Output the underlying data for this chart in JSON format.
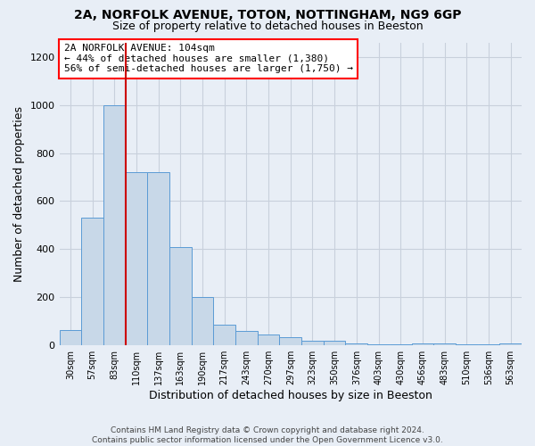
{
  "title1": "2A, NORFOLK AVENUE, TOTON, NOTTINGHAM, NG9 6GP",
  "title2": "Size of property relative to detached houses in Beeston",
  "xlabel": "Distribution of detached houses by size in Beeston",
  "ylabel": "Number of detached properties",
  "categories": [
    "30sqm",
    "57sqm",
    "83sqm",
    "110sqm",
    "137sqm",
    "163sqm",
    "190sqm",
    "217sqm",
    "243sqm",
    "270sqm",
    "297sqm",
    "323sqm",
    "350sqm",
    "376sqm",
    "403sqm",
    "430sqm",
    "456sqm",
    "483sqm",
    "510sqm",
    "536sqm",
    "563sqm"
  ],
  "values": [
    65,
    530,
    1000,
    720,
    720,
    410,
    200,
    85,
    60,
    45,
    35,
    20,
    20,
    10,
    5,
    5,
    10,
    10,
    5,
    5,
    10
  ],
  "bar_color": "#c8d8e8",
  "bar_edge_color": "#5b9bd5",
  "grid_color": "#c8d0dc",
  "bg_color": "#e8eef6",
  "annotation_box_text": "2A NORFOLK AVENUE: 104sqm\n← 44% of detached houses are smaller (1,380)\n56% of semi-detached houses are larger (1,750) →",
  "red_line_color": "#cc0000",
  "red_line_x": 2.5,
  "ylim": [
    0,
    1260
  ],
  "yticks": [
    0,
    200,
    400,
    600,
    800,
    1000,
    1200
  ],
  "footer": "Contains HM Land Registry data © Crown copyright and database right 2024.\nContains public sector information licensed under the Open Government Licence v3.0."
}
